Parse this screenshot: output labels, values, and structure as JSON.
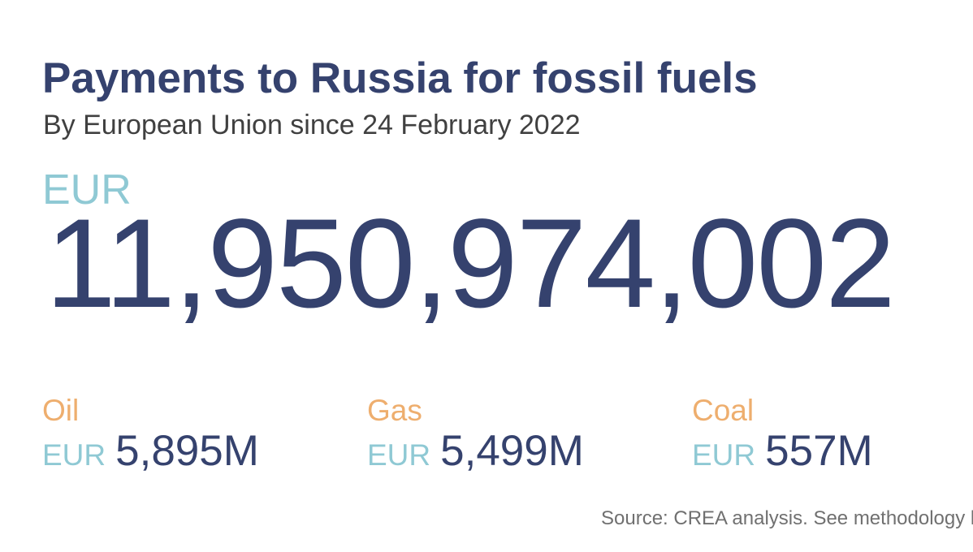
{
  "header": {
    "title": "Payments to Russia for fossil fuels",
    "subtitle": "By European Union since 24 February 2022"
  },
  "total": {
    "currency": "EUR",
    "amount": "11,950,974,002"
  },
  "breakdown": [
    {
      "fuel": "Oil",
      "currency": "EUR",
      "amount": "5,895M"
    },
    {
      "fuel": "Gas",
      "currency": "EUR",
      "amount": "5,499M"
    },
    {
      "fuel": "Coal",
      "currency": "EUR",
      "amount": "557M"
    }
  ],
  "footer": {
    "source": "Source: CREA analysis. See methodology h"
  },
  "colors": {
    "navy": "#35426e",
    "light_blue": "#8fc9d4",
    "orange": "#eeae6e",
    "subtitle_gray": "#404040",
    "source_gray": "#707070"
  }
}
